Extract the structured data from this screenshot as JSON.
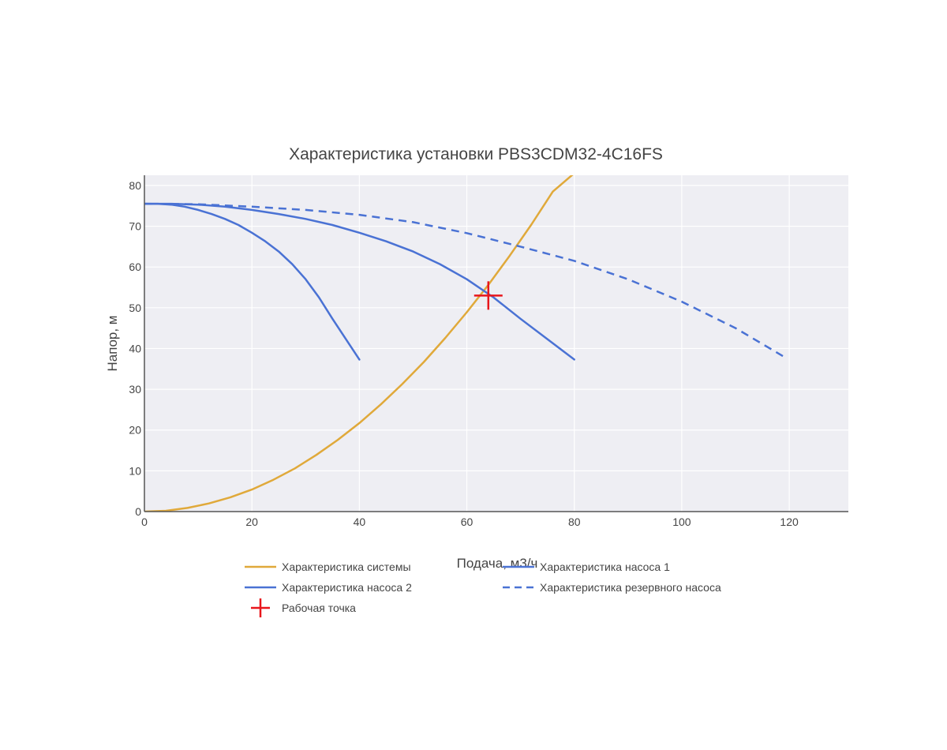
{
  "chart_data": {
    "type": "line",
    "title": "Характеристика установки PBS3CDM32-4C16FS",
    "xlabel": "Подача, м3/ч",
    "ylabel": "Напор, м",
    "xlim": [
      0,
      131
    ],
    "ylim": [
      0,
      82.5
    ],
    "xticks": [
      0,
      20,
      40,
      60,
      80,
      100,
      120
    ],
    "yticks": [
      0,
      10,
      20,
      30,
      40,
      50,
      60,
      70,
      80
    ],
    "grid": true,
    "plot_background": "#eeeef3",
    "legend_position": "bottom",
    "series": [
      {
        "name": "Характеристика системы",
        "color": "#e0a93a",
        "dash": "solid",
        "x": [
          0,
          4,
          8,
          12,
          16,
          20,
          24,
          28,
          32,
          36,
          40,
          44,
          48,
          52,
          56,
          60,
          64,
          68,
          72,
          76,
          80
        ],
        "y": [
          0,
          0.2,
          0.9,
          2.0,
          3.5,
          5.4,
          7.8,
          10.6,
          13.9,
          17.6,
          21.7,
          26.3,
          31.3,
          36.7,
          42.6,
          48.9,
          55.6,
          62.8,
          70.4,
          78.5,
          83
        ]
      },
      {
        "name": "Характеристика насоса 1",
        "color": "#4a72d4",
        "dash": "solid",
        "x": [
          0,
          5,
          10,
          15,
          20,
          25,
          30,
          35,
          40,
          45,
          50,
          55,
          60,
          65,
          70,
          75,
          80
        ],
        "y": [
          75.5,
          75.5,
          75.3,
          74.8,
          74.0,
          73.0,
          71.8,
          70.3,
          68.4,
          66.3,
          63.8,
          60.7,
          57.0,
          52.5,
          47.3,
          42.3,
          37.3
        ]
      },
      {
        "name": "Характеристика насоса 2",
        "color": "#4a72d4",
        "dash": "solid",
        "x": [
          0,
          2.5,
          5,
          7.5,
          10,
          12.5,
          15,
          17.5,
          20,
          22.5,
          25,
          27.5,
          30,
          32.5,
          35,
          37.5,
          40
        ],
        "y": [
          75.5,
          75.5,
          75.3,
          74.8,
          74.0,
          73.0,
          71.8,
          70.3,
          68.4,
          66.3,
          63.8,
          60.7,
          57.0,
          52.5,
          47.3,
          42.3,
          37.3
        ]
      },
      {
        "name": "Характеристика резервного насоса",
        "color": "#4a72d4",
        "dash": "dash",
        "x": [
          0,
          10,
          20,
          30,
          40,
          50,
          60,
          70,
          80,
          90,
          100,
          110,
          119
        ],
        "y": [
          75.5,
          75.4,
          74.8,
          74.0,
          72.8,
          71.0,
          68.3,
          65.0,
          61.5,
          57.0,
          51.5,
          45.0,
          38.0
        ]
      }
    ],
    "markers": [
      {
        "name": "Рабочая точка",
        "color": "#e8161c",
        "symbol": "cross",
        "x": 64,
        "y": 53
      }
    ]
  }
}
